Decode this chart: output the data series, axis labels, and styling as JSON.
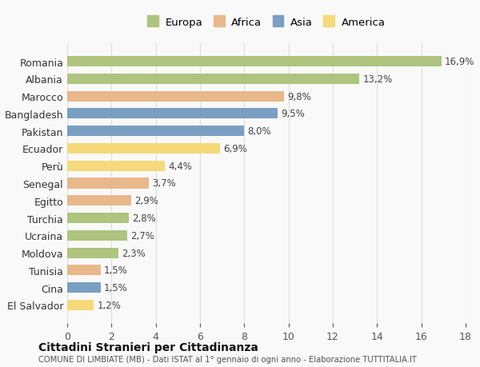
{
  "categories": [
    "Romania",
    "Albania",
    "Marocco",
    "Bangladesh",
    "Pakistan",
    "Ecuador",
    "Perù",
    "Senegal",
    "Egitto",
    "Turchia",
    "Ucraina",
    "Moldova",
    "Tunisia",
    "Cina",
    "El Salvador"
  ],
  "values": [
    16.9,
    13.2,
    9.8,
    9.5,
    8.0,
    6.9,
    4.4,
    3.7,
    2.9,
    2.8,
    2.7,
    2.3,
    1.5,
    1.5,
    1.2
  ],
  "continents": [
    "Europa",
    "Europa",
    "Africa",
    "Asia",
    "Asia",
    "America",
    "America",
    "Africa",
    "Africa",
    "Europa",
    "Europa",
    "Europa",
    "Africa",
    "Asia",
    "America"
  ],
  "colors": {
    "Europa": "#aec47f",
    "Africa": "#e8b88a",
    "Asia": "#7a9fc2",
    "America": "#f5d97a"
  },
  "legend_order": [
    "Europa",
    "Africa",
    "Asia",
    "America"
  ],
  "title": "Cittadini Stranieri per Cittadinanza",
  "subtitle": "COMUNE DI LIMBIATE (MB) - Dati ISTAT al 1° gennaio di ogni anno - Elaborazione TUTTITALIA.IT",
  "xlim": [
    0,
    18
  ],
  "xticks": [
    0,
    2,
    4,
    6,
    8,
    10,
    12,
    14,
    16,
    18
  ],
  "background_color": "#f9f9f9",
  "grid_color": "#dddddd"
}
